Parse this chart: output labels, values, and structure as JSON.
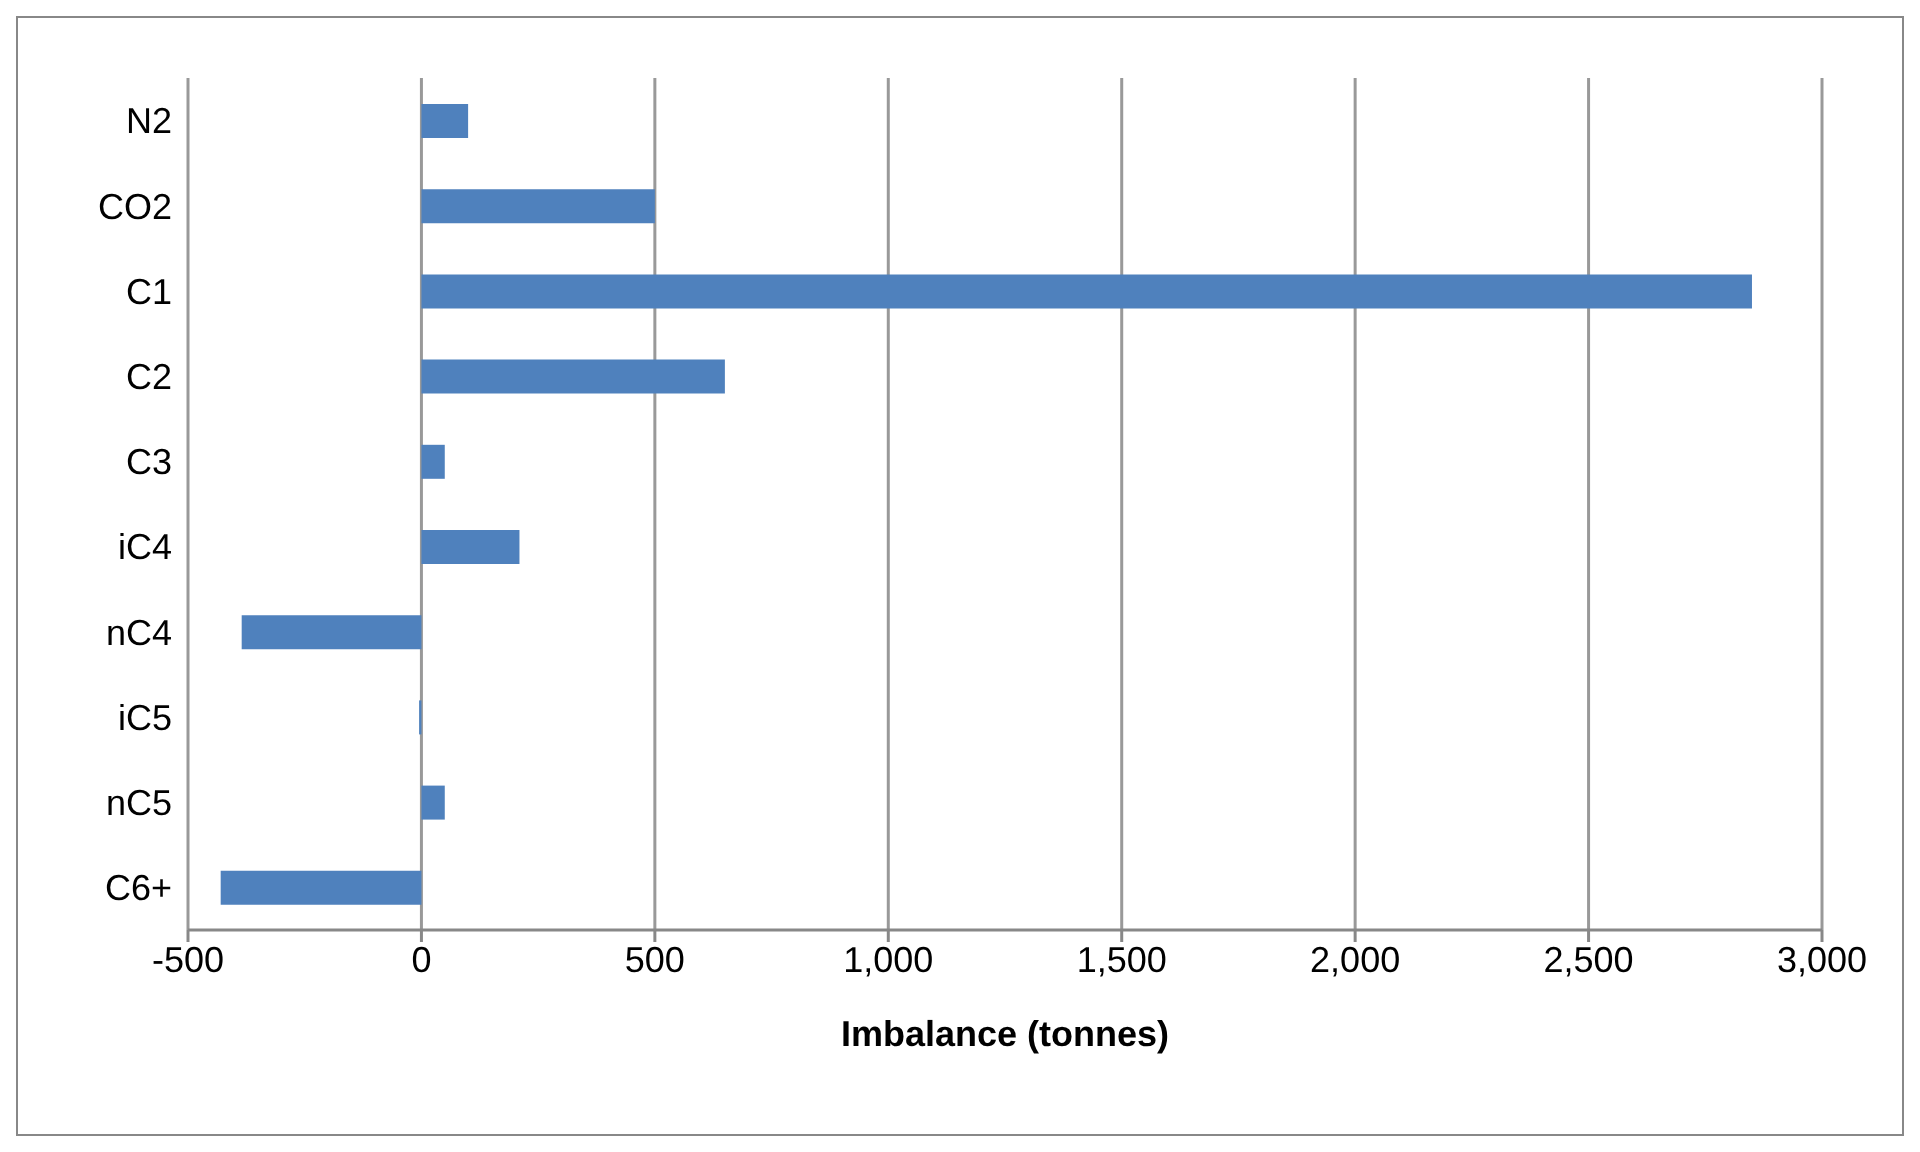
{
  "chart_data": {
    "type": "bar",
    "orientation": "horizontal",
    "xlabel": "Imbalance (tonnes)",
    "categories": [
      "N2",
      "CO2",
      "C1",
      "C2",
      "C3",
      "iC4",
      "nC4",
      "iC5",
      "nC5",
      "C6+"
    ],
    "values": [
      100,
      500,
      2850,
      650,
      50,
      210,
      -385,
      -5,
      50,
      -430
    ],
    "color": "#4f81bd",
    "xlim": [
      -500,
      3000
    ],
    "xticks": [
      {
        "value": -500,
        "label": "-500"
      },
      {
        "value": 0,
        "label": "0"
      },
      {
        "value": 500,
        "label": "500"
      },
      {
        "value": 1000,
        "label": "1,000"
      },
      {
        "value": 1500,
        "label": "1,500"
      },
      {
        "value": 2000,
        "label": "2,000"
      },
      {
        "value": 2500,
        "label": "2,500"
      },
      {
        "value": 3000,
        "label": "3,000"
      }
    ],
    "grid": "x",
    "legend": false
  }
}
